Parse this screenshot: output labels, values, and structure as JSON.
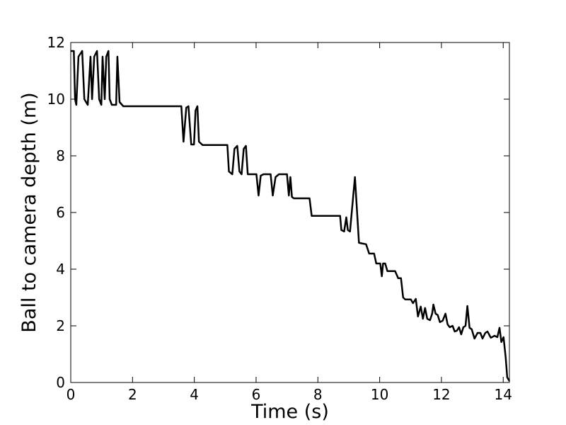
{
  "chart_data": {
    "type": "line",
    "x_label": "Time (s)",
    "y_label": "Ball to camera depth (m)",
    "xlim": [
      0,
      14.2
    ],
    "ylim": [
      0,
      12
    ],
    "xticks": [
      0,
      2,
      4,
      6,
      8,
      10,
      12,
      14
    ],
    "yticks": [
      0,
      2,
      4,
      6,
      8,
      10,
      12
    ],
    "grid": false,
    "x": [
      0,
      0.1,
      0.14,
      0.18,
      0.25,
      0.37,
      0.44,
      0.55,
      0.64,
      0.69,
      0.76,
      0.85,
      0.92,
      0.99,
      1.03,
      1.1,
      1.15,
      1.22,
      1.26,
      1.33,
      1.47,
      1.51,
      1.58,
      1.7,
      3.58,
      3.65,
      3.74,
      3.81,
      3.9,
      3.99,
      4.04,
      4.1,
      4.15,
      4.27,
      5.07,
      5.12,
      5.23,
      5.3,
      5.39,
      5.46,
      5.53,
      5.6,
      5.67,
      5.73,
      6.01,
      6.08,
      6.15,
      6.24,
      6.47,
      6.54,
      6.63,
      6.74,
      7,
      7.06,
      7.11,
      7.16,
      7.22,
      7.73,
      7.8,
      8.72,
      8.76,
      8.85,
      8.92,
      8.97,
      9.04,
      9.2,
      9.27,
      9.33,
      9.56,
      9.66,
      9.82,
      9.89,
      10.02,
      10.07,
      10.11,
      10.18,
      10.25,
      10.5,
      10.6,
      10.69,
      10.76,
      10.83,
      11.01,
      11.08,
      11.17,
      11.24,
      11.33,
      11.4,
      11.47,
      11.54,
      11.63,
      11.7,
      11.74,
      11.81,
      11.88,
      11.95,
      12.04,
      12.13,
      12.2,
      12.27,
      12.36,
      12.43,
      12.5,
      12.57,
      12.64,
      12.71,
      12.78,
      12.84,
      12.91,
      12.98,
      13.07,
      13.17,
      13.26,
      13.33,
      13.42,
      13.49,
      13.6,
      13.72,
      13.81,
      13.88,
      13.94,
      14.01,
      14.08,
      14.13,
      14.2
    ],
    "series": [
      {
        "color": "#000000",
        "values": [
          11.7,
          11.7,
          10,
          9.8,
          11.5,
          11.7,
          10,
          9.8,
          11.5,
          10,
          11.5,
          11.7,
          10,
          9.8,
          11.5,
          10,
          11.5,
          11.7,
          10,
          9.8,
          9.8,
          11.5,
          9.9,
          9.75,
          9.75,
          8.5,
          9.7,
          9.75,
          8.4,
          8.4,
          9.6,
          9.75,
          8.5,
          8.38,
          8.38,
          7.45,
          7.35,
          8.25,
          8.35,
          7.45,
          7.35,
          8.25,
          8.35,
          7.35,
          7.35,
          6.6,
          7.3,
          7.35,
          7.35,
          6.6,
          7.25,
          7.35,
          7.35,
          6.6,
          7.25,
          6.55,
          6.5,
          6.5,
          5.88,
          5.88,
          5.38,
          5.33,
          5.83,
          5.38,
          5.33,
          7.25,
          6,
          4.93,
          4.88,
          4.55,
          4.55,
          4.2,
          4.2,
          3.75,
          4.2,
          4.2,
          3.93,
          3.93,
          3.68,
          3.68,
          3,
          2.93,
          2.93,
          2.8,
          2.95,
          2.33,
          2.68,
          2.25,
          2.63,
          2.25,
          2.2,
          2.43,
          2.75,
          2.43,
          2.38,
          2.13,
          2.18,
          2.43,
          2.05,
          1.95,
          2,
          1.8,
          1.83,
          1.95,
          1.7,
          1.95,
          2,
          2.7,
          1.93,
          1.88,
          1.55,
          1.75,
          1.75,
          1.55,
          1.75,
          1.8,
          1.58,
          1.65,
          1.6,
          1.93,
          1.43,
          1.6,
          0.88,
          0.18,
          0.05
        ]
      }
    ]
  }
}
